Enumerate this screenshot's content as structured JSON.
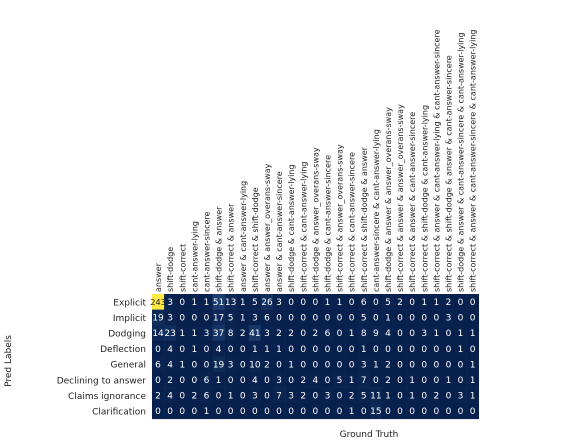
{
  "chart_data": {
    "type": "heatmap",
    "xlabel": "Ground Truth",
    "ylabel": "Pred Labels",
    "colormap": [
      "#08204d",
      "#1a3b6e",
      "#3d5a8a",
      "#7f8aa0",
      "#bfb67a",
      "#ffe945"
    ],
    "x_categories": [
      "answer",
      "shift-dodge",
      "shift-correct",
      "cant-answer-lying",
      "cant-answer-sincere",
      "shift-dodge & answer",
      "shift-correct & answer",
      "answer & cant-answer-lying",
      "shift-correct & shift-dodge",
      "answer & answer_overans-sway",
      "answer & cant-answer-sincere",
      "shift-dodge & cant-answer-lying",
      "shift-correct & cant-answer-lying",
      "shift-dodge & answer_overans-sway",
      "shift-dodge & cant-answer-sincere",
      "shift-correct & answer_overans-sway",
      "shift-correct & cant-answer-sincere",
      "shift-correct & shift-dodge & answer",
      "cant-answer-sincere & cant-answer-lying",
      "shift-dodge & answer & answer_overans-sway",
      "shift-correct & answer & answer_overans-sway",
      "shift-correct & answer & cant-answer-sincere",
      "shift-correct & shift-dodge & cant-answer-lying",
      "shift-correct & answer & cant-answer-lying & cant-answer-sincere",
      "shift-correct & shift-dodge & answer & cant-answer-sincere",
      "shift-dodge & answer & cant-answer-sincere & cant-answer-lying",
      "shift-correct & answer & cant-answer-sincere & cant-answer-lying"
    ],
    "y_categories": [
      "Explicit",
      "Implicit",
      "Dodging",
      "Deflection",
      "General",
      "Declining to answer",
      "Claims ignorance",
      "Clarification"
    ],
    "values": [
      [
        243,
        3,
        0,
        1,
        1,
        51,
        13,
        1,
        5,
        26,
        3,
        0,
        0,
        0,
        1,
        1,
        0,
        6,
        0,
        5,
        2,
        0,
        1,
        1,
        2,
        0,
        0
      ],
      [
        19,
        3,
        0,
        0,
        0,
        17,
        5,
        1,
        3,
        6,
        0,
        0,
        0,
        0,
        0,
        0,
        0,
        5,
        0,
        1,
        0,
        0,
        0,
        0,
        3,
        0,
        0
      ],
      [
        14,
        23,
        1,
        1,
        3,
        37,
        8,
        2,
        41,
        3,
        2,
        2,
        0,
        2,
        6,
        0,
        1,
        8,
        9,
        4,
        0,
        0,
        3,
        1,
        0,
        1,
        1
      ],
      [
        0,
        4,
        0,
        1,
        0,
        4,
        0,
        0,
        1,
        1,
        1,
        0,
        0,
        0,
        0,
        0,
        0,
        1,
        0,
        0,
        0,
        0,
        0,
        0,
        0,
        1,
        0
      ],
      [
        6,
        4,
        1,
        0,
        0,
        19,
        3,
        0,
        10,
        2,
        0,
        1,
        0,
        0,
        0,
        0,
        0,
        3,
        1,
        2,
        0,
        0,
        0,
        0,
        0,
        0,
        1
      ],
      [
        0,
        2,
        0,
        0,
        6,
        1,
        0,
        0,
        4,
        0,
        3,
        0,
        2,
        4,
        0,
        5,
        1,
        7,
        0,
        2,
        0,
        1,
        0,
        0,
        1,
        0,
        1
      ],
      [
        2,
        4,
        0,
        2,
        6,
        0,
        1,
        0,
        3,
        0,
        7,
        3,
        2,
        0,
        3,
        0,
        2,
        5,
        11,
        1,
        0,
        1,
        0,
        2,
        0,
        3,
        1
      ],
      [
        0,
        0,
        0,
        0,
        1,
        0,
        0,
        0,
        0,
        0,
        0,
        0,
        0,
        0,
        0,
        0,
        1,
        0,
        15,
        0,
        0,
        0,
        0,
        0,
        0,
        0,
        0
      ]
    ],
    "vmin": 0,
    "vmax": 243,
    "grid": false,
    "legend": "none"
  }
}
